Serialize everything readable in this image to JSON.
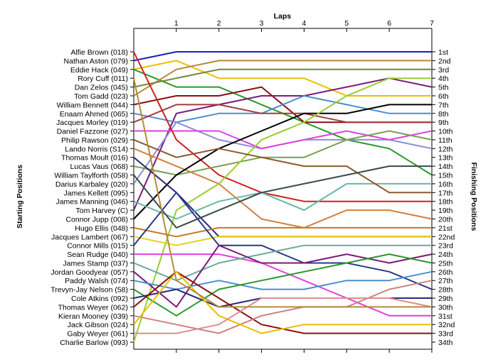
{
  "chart_data": {
    "type": "line",
    "title": "Laps",
    "ylabel_left": "Starting Positions",
    "ylabel_right": "Finishing Positions",
    "x": [
      0,
      1,
      2,
      3,
      4,
      5,
      6,
      7
    ],
    "x_tick_labels": [
      "1",
      "2",
      "3",
      "4",
      "5",
      "6",
      "7"
    ],
    "y_inverted": true,
    "ylim": [
      1,
      34
    ],
    "grid": false,
    "starting_labels": [
      "Alfie Brown (018)",
      "Nathan Aston (079)",
      "Eddie Hack (049)",
      "Rory Cuff (011)",
      "Dan Zelos (045)",
      "Tom Gadd (023)",
      "William Bennett (044)",
      "Enaam Ahmed (065)",
      "Jacques Morley (019)",
      "Daniel Fazzone (027)",
      "Philip Rawson (029)",
      "Lando Norris (S14)",
      "Thomas Moult (016)",
      "Lucas Vaus (068)",
      "William Taylforth (058)",
      "Darius Karbaley (020)",
      "James Kellett (095)",
      "James Manning (046)",
      "Tom Harvey (C)",
      "Connor Jupp (008)",
      "Hugo Ellis (048)",
      "Jacques Lambert (067)",
      "Connor Mills (015)",
      "Sean Rudge (040)",
      "James Stamp (037)",
      "Jordan Goodyear (057)",
      "Paddy Walsh (074)",
      "Trevyn-Jay Nelson (58)",
      "Cole Atkins (092)",
      "Thomas Weyer (062)",
      "Kieran Mooney (039)",
      "Jack Gibson (024)",
      "Gaby Weyer (061)",
      "Charlie Barlow (093)"
    ],
    "finishing_labels": [
      "1st",
      "2nd",
      "3rd",
      "4th",
      "5th",
      "6th",
      "7th",
      "8th",
      "9th",
      "10th",
      "11th",
      "12th",
      "13th",
      "14th",
      "15th",
      "16th",
      "17th",
      "18th",
      "19th",
      "20th",
      "21st",
      "22nd",
      "23rd",
      "24th",
      "25th",
      "26th",
      "27th",
      "28th",
      "29th",
      "30th",
      "31st",
      "32nd",
      "33rd",
      "34th"
    ],
    "series": [
      {
        "color": "#1f1fb4",
        "positions": [
          2,
          1,
          1,
          1,
          1,
          1,
          1,
          1
        ]
      },
      {
        "color": "#e8c000",
        "positions": [
          3,
          2,
          4,
          4,
          4,
          6,
          6,
          6
        ]
      },
      {
        "color": "#2a9a2a",
        "positions": [
          3,
          5,
          5,
          7,
          9,
          11,
          12,
          15
        ]
      },
      {
        "color": "#b48a3c",
        "positions": [
          6,
          3,
          2,
          2,
          2,
          2,
          2,
          2
        ]
      },
      {
        "color": "#6e8c2c",
        "positions": [
          5,
          4,
          3,
          3,
          3,
          3,
          3,
          3
        ]
      },
      {
        "color": "#8b1010",
        "positions": [
          7,
          6,
          6,
          5,
          9,
          9,
          9,
          9
        ]
      },
      {
        "color": "#7a1a7a",
        "positions": [
          19,
          8,
          7,
          6,
          6,
          5,
          4,
          5
        ]
      },
      {
        "color": "#4a8fd0",
        "positions": [
          8,
          9,
          8,
          8,
          6,
          7,
          8,
          8
        ]
      },
      {
        "color": "#a43c3c",
        "positions": [
          9,
          7,
          7,
          8,
          8,
          9,
          9,
          9
        ]
      },
      {
        "color": "#8c8cd4",
        "positions": [
          16,
          9,
          11,
          12,
          11,
          11,
          11,
          12
        ]
      },
      {
        "color": "#e040e0",
        "positions": [
          10,
          10,
          10,
          12,
          11,
          10,
          11,
          10
        ]
      },
      {
        "color": "#d22020",
        "positions": [
          1,
          11,
          15,
          17,
          18,
          18,
          18,
          18
        ]
      },
      {
        "color": "#7aa050",
        "positions": [
          14,
          15,
          14,
          13,
          13,
          11,
          10,
          11
        ]
      },
      {
        "color": "#d08040",
        "positions": [
          12,
          14,
          16,
          20,
          21,
          19,
          19,
          20
        ]
      },
      {
        "color": "#000000",
        "positions": [
          20,
          15,
          12,
          10,
          8,
          8,
          7,
          7
        ]
      },
      {
        "color": "#9acd32",
        "positions": [
          34,
          19,
          16,
          11,
          9,
          6,
          4,
          4
        ]
      },
      {
        "color": "#2a2a7a",
        "positions": [
          13,
          17,
          22,
          22,
          22,
          22,
          22,
          22
        ]
      },
      {
        "color": "#66b8aa",
        "positions": [
          18,
          20,
          18,
          17,
          19,
          16,
          16,
          16
        ]
      },
      {
        "color": "#8b5a2b",
        "positions": [
          11,
          13,
          12,
          13,
          14,
          14,
          17,
          17
        ]
      },
      {
        "color": "#3a4a4a",
        "positions": [
          15,
          21,
          19,
          17,
          16,
          15,
          14,
          14
        ]
      },
      {
        "color": "#c87820",
        "positions": [
          21,
          22,
          21,
          21,
          21,
          21,
          21,
          21
        ]
      },
      {
        "color": "#e8d020",
        "positions": [
          22,
          23,
          22,
          22,
          22,
          22,
          22,
          22
        ]
      },
      {
        "color": "#2a3a8a",
        "positions": [
          23,
          17,
          23,
          23,
          25,
          25,
          26,
          28
        ]
      },
      {
        "color": "#e040e0",
        "positions": [
          24,
          24,
          24,
          25,
          27,
          29,
          31,
          31
        ]
      },
      {
        "color": "#6aaaa0",
        "positions": [
          25,
          27,
          25,
          24,
          23,
          23,
          23,
          23
        ]
      },
      {
        "color": "#7a1a7a",
        "positions": [
          26,
          30,
          23,
          25,
          25,
          24,
          25,
          24
        ]
      },
      {
        "color": "#4a8fd0",
        "positions": [
          27,
          28,
          27,
          28,
          28,
          27,
          27,
          26
        ]
      },
      {
        "color": "#2a9a2a",
        "positions": [
          28,
          31,
          28,
          27,
          26,
          25,
          24,
          25
        ]
      },
      {
        "color": "#2a2a7a",
        "positions": [
          29,
          28,
          30,
          29,
          29,
          29,
          29,
          29
        ]
      },
      {
        "color": "#8b1010",
        "positions": [
          30,
          26,
          29,
          32,
          33,
          33,
          33,
          33
        ]
      },
      {
        "color": "#d08080",
        "positions": [
          31,
          32,
          33,
          31,
          30,
          30,
          28,
          27
        ]
      },
      {
        "color": "#e8c000",
        "positions": [
          32,
          26,
          31,
          33,
          32,
          32,
          32,
          32
        ]
      },
      {
        "color": "#e08c8c",
        "positions": [
          33,
          33,
          32,
          29,
          29,
          29,
          29,
          30
        ]
      },
      {
        "color": "#b48a3c",
        "positions": [
          4,
          27,
          30,
          30,
          30,
          30,
          30,
          30
        ]
      }
    ]
  }
}
